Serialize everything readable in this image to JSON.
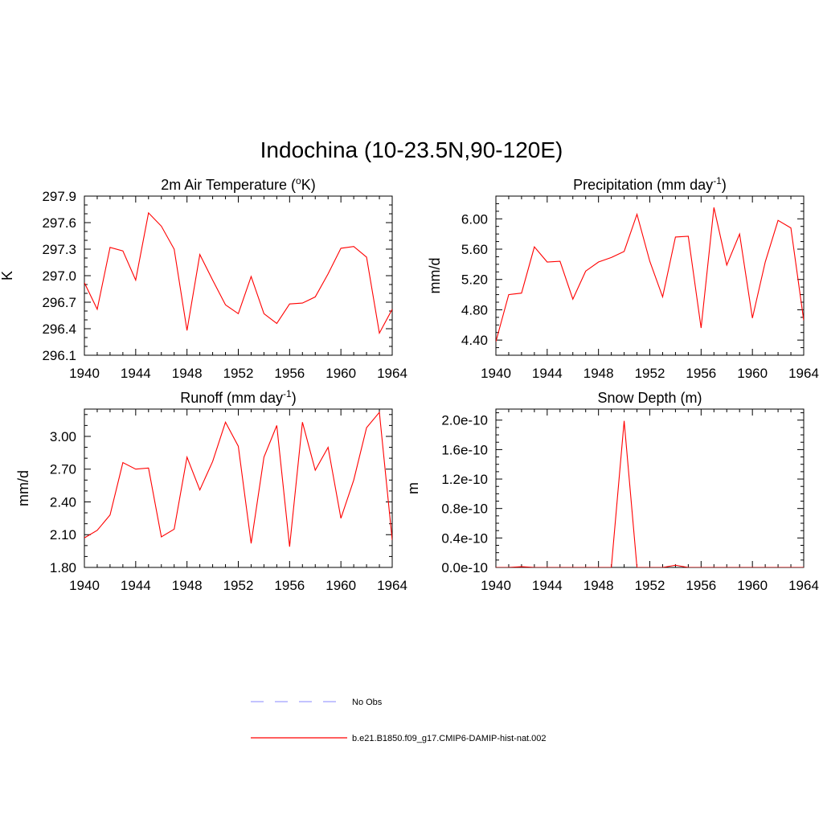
{
  "figure": {
    "title": "Indochina (10-23.5N,90-120E)",
    "legend": [
      {
        "label": "No Obs",
        "color": "#9f9fff",
        "style": "dashed"
      },
      {
        "label": "b.e21.B1850.f09_g17.CMIP6-DAMIP-hist-nat.002",
        "color": "#ff0000",
        "style": "solid"
      }
    ]
  },
  "chart_data": [
    {
      "type": "line",
      "title_html": "2m Air Temperature (<tspan baseline-shift='super' font-size='12'>o</tspan>K)",
      "title": "2m Air Temperature (oK)",
      "ylabel": "K",
      "xlim": [
        1940,
        1964
      ],
      "ylim": [
        296.1,
        297.9
      ],
      "xticks": [
        1940,
        1944,
        1948,
        1952,
        1956,
        1960,
        1964
      ],
      "yticks": [
        "296.1",
        "296.4",
        "296.7",
        "297.0",
        "297.3",
        "297.6",
        "297.9"
      ],
      "yminor": 0.1,
      "series": [
        {
          "color": "#ff0000",
          "x": [
            1940,
            1941,
            1942,
            1943,
            1944,
            1945,
            1946,
            1947,
            1948,
            1949,
            1950,
            1951,
            1952,
            1953,
            1954,
            1955,
            1956,
            1957,
            1958,
            1959,
            1960,
            1961,
            1962,
            1963,
            1964
          ],
          "y": [
            296.92,
            296.62,
            297.32,
            297.28,
            296.95,
            297.71,
            297.56,
            297.3,
            296.38,
            297.24,
            296.95,
            296.67,
            296.57,
            296.99,
            296.57,
            296.46,
            296.68,
            296.69,
            296.76,
            297.02,
            297.31,
            297.33,
            297.21,
            296.35,
            296.62
          ]
        }
      ]
    },
    {
      "type": "line",
      "title_html": "Precipitation (mm day<tspan baseline-shift='super' font-size='12'>-1</tspan>)",
      "title": "Precipitation (mm day-1)",
      "ylabel": "mm/d",
      "xlim": [
        1940,
        1964
      ],
      "ylim": [
        4.2,
        6.3
      ],
      "xticks": [
        1940,
        1944,
        1948,
        1952,
        1956,
        1960,
        1964
      ],
      "yticks": [
        "4.40",
        "4.80",
        "5.20",
        "5.60",
        "6.00"
      ],
      "ytickvals": [
        4.4,
        4.8,
        5.2,
        5.6,
        6.0
      ],
      "yminor": 0.1,
      "series": [
        {
          "color": "#ff0000",
          "x": [
            1940,
            1941,
            1942,
            1943,
            1944,
            1945,
            1946,
            1947,
            1948,
            1949,
            1950,
            1951,
            1952,
            1953,
            1954,
            1955,
            1956,
            1957,
            1958,
            1959,
            1960,
            1961,
            1962,
            1963,
            1964
          ],
          "y": [
            4.38,
            5.0,
            5.02,
            5.63,
            5.43,
            5.44,
            4.94,
            5.31,
            5.43,
            5.49,
            5.57,
            6.06,
            5.44,
            4.97,
            5.76,
            5.77,
            4.56,
            6.15,
            5.39,
            5.8,
            4.69,
            5.43,
            5.98,
            5.88,
            4.66
          ]
        }
      ]
    },
    {
      "type": "line",
      "title_html": "Runoff (mm day<tspan baseline-shift='super' font-size='12'>-1</tspan>)",
      "title": "Runoff (mm day-1)",
      "ylabel": "mm/d",
      "xlim": [
        1940,
        1964
      ],
      "ylim": [
        1.8,
        3.25
      ],
      "xticks": [
        1940,
        1944,
        1948,
        1952,
        1956,
        1960,
        1964
      ],
      "yticks": [
        "1.80",
        "2.10",
        "2.40",
        "2.70",
        "3.00"
      ],
      "ytickvals": [
        1.8,
        2.1,
        2.4,
        2.7,
        3.0
      ],
      "yminor": 0.1,
      "series": [
        {
          "color": "#ff0000",
          "x": [
            1940,
            1941,
            1942,
            1943,
            1944,
            1945,
            1946,
            1947,
            1948,
            1949,
            1950,
            1951,
            1952,
            1953,
            1954,
            1955,
            1956,
            1957,
            1958,
            1959,
            1960,
            1961,
            1962,
            1963,
            1964
          ],
          "y": [
            2.07,
            2.14,
            2.28,
            2.76,
            2.7,
            2.71,
            2.08,
            2.15,
            2.81,
            2.51,
            2.77,
            3.13,
            2.91,
            2.02,
            2.81,
            3.1,
            1.99,
            3.13,
            2.69,
            2.9,
            2.25,
            2.6,
            3.08,
            3.22,
            2.05
          ]
        }
      ]
    },
    {
      "type": "line",
      "title_html": "Snow Depth (m)",
      "title": "Snow Depth (m)",
      "ylabel": "m",
      "xlim": [
        1940,
        1964
      ],
      "ylim": [
        0,
        2.15e-10
      ],
      "xticks": [
        1940,
        1944,
        1948,
        1952,
        1956,
        1960,
        1964
      ],
      "yticks": [
        "0.0e-10",
        "0.4e-10",
        "0.8e-10",
        "1.2e-10",
        "1.6e-10",
        "2.0e-10"
      ],
      "ytickvals": [
        0,
        4e-11,
        8e-11,
        1.2e-10,
        1.6e-10,
        2e-10
      ],
      "yminor": 1e-11,
      "series": [
        {
          "color": "#ff0000",
          "x": [
            1940,
            1941,
            1942,
            1943,
            1944,
            1945,
            1946,
            1947,
            1948,
            1949,
            1950,
            1951,
            1952,
            1953,
            1954,
            1955,
            1956,
            1957,
            1958,
            1959,
            1960,
            1961,
            1962,
            1963,
            1964
          ],
          "y": [
            0,
            0,
            1e-12,
            0,
            0,
            0,
            0,
            0,
            0,
            0,
            1.99e-10,
            0,
            0,
            0,
            3e-12,
            0,
            0,
            0,
            0,
            0,
            0,
            0,
            0,
            0,
            0
          ]
        }
      ]
    }
  ]
}
